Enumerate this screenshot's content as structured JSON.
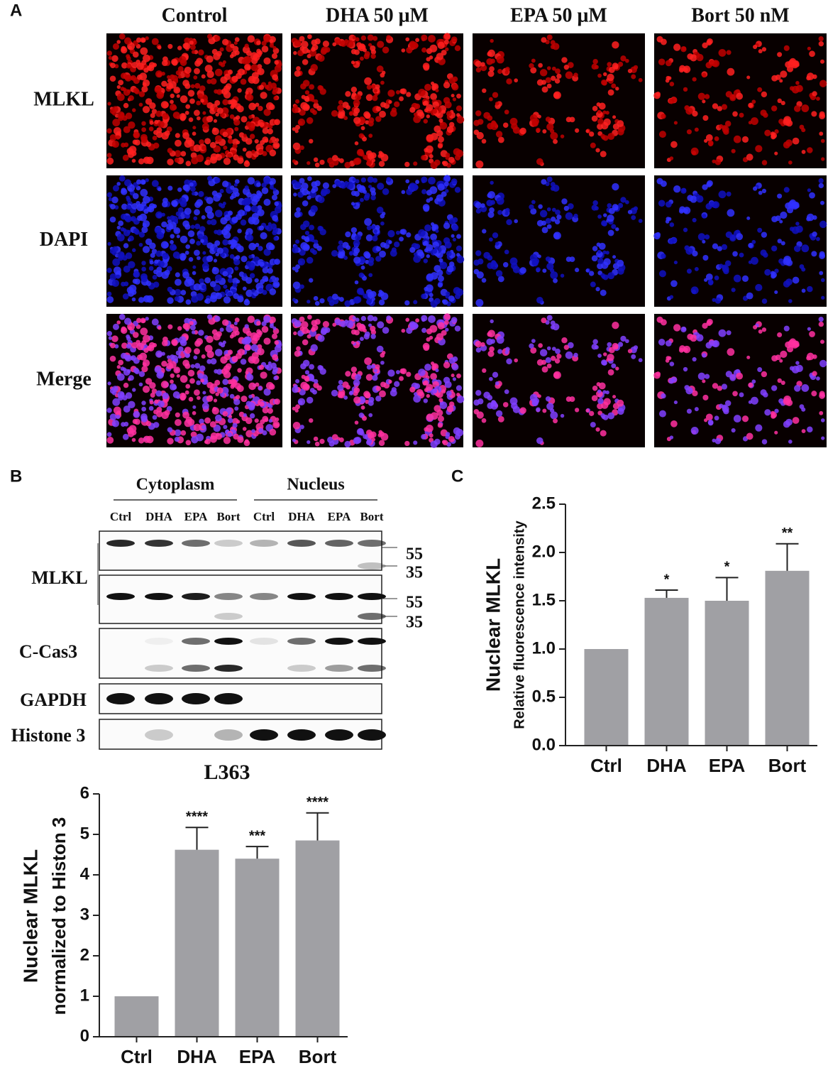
{
  "panel_labels": [
    "A",
    "B",
    "C"
  ],
  "micrographs": {
    "columns": [
      "Control",
      "DHA 50 μM",
      "EPA 50 μM",
      "Bort 50 nM"
    ],
    "rows": [
      "MLKL",
      "DAPI",
      "Merge"
    ]
  },
  "blot": {
    "groups": [
      "Cytoplasm",
      "Nucleus"
    ],
    "lanes": [
      "Ctrl",
      "DHA",
      "EPA",
      "Bort",
      "Ctrl",
      "DHA",
      "EPA",
      "Bort"
    ],
    "rows": [
      "MLKL",
      "C-Cas3",
      "GAPDH",
      "Histone 3"
    ],
    "markers": [
      55,
      35,
      55,
      35
    ]
  },
  "chart_data": [
    {
      "type": "bar",
      "title": "L363",
      "ylabel": [
        "Nuclear MLKL",
        "normalized to Histon 3"
      ],
      "categories": [
        "Ctrl",
        "DHA",
        "EPA",
        "Bort"
      ],
      "values": [
        1.0,
        4.62,
        4.4,
        4.85
      ],
      "errors": [
        0,
        0.55,
        0.3,
        0.68
      ],
      "significance": [
        null,
        "****",
        "***",
        "****"
      ],
      "color": "#a0a0a4",
      "ylim": [
        0,
        6
      ],
      "yticks": [
        0,
        1,
        2,
        3,
        4,
        5,
        6
      ]
    },
    {
      "type": "bar",
      "ylabel": [
        "Nuclear MLKL",
        "Relative fluorescence intensity"
      ],
      "categories": [
        "Ctrl",
        "DHA",
        "EPA",
        "Bort"
      ],
      "values": [
        1.0,
        1.53,
        1.5,
        1.81
      ],
      "errors": [
        0,
        0.08,
        0.24,
        0.28
      ],
      "significance": [
        null,
        "*",
        "*",
        "**"
      ],
      "color": "#a0a0a4",
      "ylim": [
        0,
        2.5
      ],
      "yticks": [
        {
          "value": 0,
          "label": "0.0"
        },
        0.5,
        {
          "value": 1,
          "label": "1.0"
        },
        1.5,
        {
          "value": 2,
          "label": "2.0"
        },
        2.5
      ]
    }
  ]
}
